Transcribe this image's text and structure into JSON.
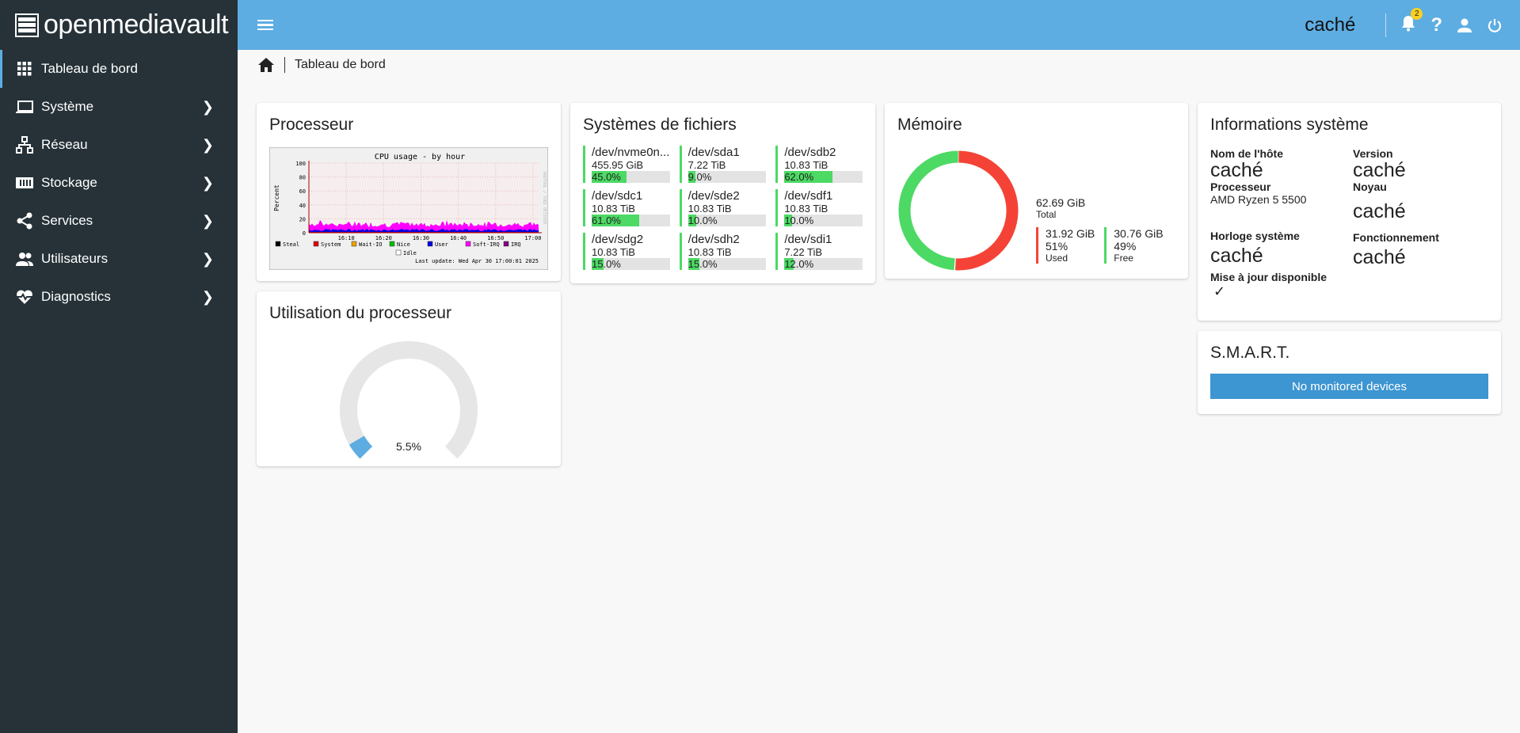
{
  "app": {
    "name": "openmediavault",
    "hostname": "caché",
    "notifications": "2"
  },
  "sidebar": {
    "items": [
      {
        "label": "Tableau de bord",
        "icon": "grid-icon"
      },
      {
        "label": "Système",
        "icon": "laptop-icon"
      },
      {
        "label": "Réseau",
        "icon": "network-icon"
      },
      {
        "label": "Stockage",
        "icon": "storage-icon"
      },
      {
        "label": "Services",
        "icon": "share-icon"
      },
      {
        "label": "Utilisateurs",
        "icon": "users-icon"
      },
      {
        "label": "Diagnostics",
        "icon": "heartbeat-icon"
      }
    ]
  },
  "breadcrumb": {
    "current": "Tableau de bord"
  },
  "processor": {
    "title": "Processeur"
  },
  "chart_data": {
    "type": "area",
    "title": "CPU usage - by hour",
    "ylabel": "Percent",
    "ylim": [
      0,
      100
    ],
    "yticks": [
      "0",
      "20",
      "40",
      "60",
      "80",
      "100"
    ],
    "xticks": [
      "16:10",
      "16:20",
      "16:30",
      "16:40",
      "16:50",
      "17:00"
    ],
    "legend": [
      "Steal",
      "System",
      "Wait-IO",
      "Nice",
      "User",
      "Soft-IRQ",
      "IRQ",
      "Idle"
    ],
    "colors": {
      "Steal": "#000000",
      "System": "#e00000",
      "Wait-IO": "#f0a000",
      "Nice": "#00c000",
      "User": "#0000e0",
      "Soft-IRQ": "#ff00ff",
      "IRQ": "#800080",
      "Idle": "#ffffff"
    },
    "series_approx": {
      "User": 4,
      "Soft-IRQ": 8,
      "System": 1
    },
    "footer": "Last update: Wed Apr 30 17:00:01 2025",
    "watermark": "RRDTOOL / TOBI OETIKER"
  },
  "cpu_usage": {
    "title": "Utilisation du processeur",
    "value": 5.5,
    "label": "5.5%"
  },
  "filesystems": {
    "title": "Systèmes de fichiers",
    "items": [
      {
        "name": "/dev/nvme0n...",
        "size": "455.95 GiB",
        "pct": 45,
        "label": "45.0%"
      },
      {
        "name": "/dev/sda1",
        "size": "7.22 TiB",
        "pct": 9,
        "label": "9.0%"
      },
      {
        "name": "/dev/sdb2",
        "size": "10.83 TiB",
        "pct": 62,
        "label": "62.0%"
      },
      {
        "name": "/dev/sdc1",
        "size": "10.83 TiB",
        "pct": 61,
        "label": "61.0%"
      },
      {
        "name": "/dev/sde2",
        "size": "10.83 TiB",
        "pct": 10,
        "label": "10.0%"
      },
      {
        "name": "/dev/sdf1",
        "size": "10.83 TiB",
        "pct": 10,
        "label": "10.0%"
      },
      {
        "name": "/dev/sdg2",
        "size": "10.83 TiB",
        "pct": 15,
        "label": "15.0%"
      },
      {
        "name": "/dev/sdh2",
        "size": "10.83 TiB",
        "pct": 15,
        "label": "15.0%"
      },
      {
        "name": "/dev/sdi1",
        "size": "7.22 TiB",
        "pct": 12,
        "label": "12.0%"
      }
    ]
  },
  "memory": {
    "title": "Mémoire",
    "total": "62.69 GiB",
    "total_label": "Total",
    "used": "31.92 GiB",
    "used_pct": "51%",
    "used_label": "Used",
    "free": "30.76 GiB",
    "free_pct": "49%",
    "free_label": "Free",
    "used_fraction": 0.51,
    "used_color": "#f44336",
    "free_color": "#4cd964"
  },
  "sysinfo": {
    "title": "Informations système",
    "hostname_label": "Nom de l'hôte",
    "hostname": "caché",
    "version_label": "Version",
    "version": "caché",
    "cpu_label": "Processeur",
    "cpu": "AMD Ryzen 5 5500",
    "kernel_label": "Noyau",
    "kernel": "caché",
    "clock_label": "Horloge système",
    "clock": "caché",
    "uptime_label": "Fonctionnement",
    "uptime": "caché",
    "update_label": "Mise à jour disponible",
    "update": "✓"
  },
  "smart": {
    "title": "S.M.A.R.T.",
    "message": "No monitored devices"
  }
}
